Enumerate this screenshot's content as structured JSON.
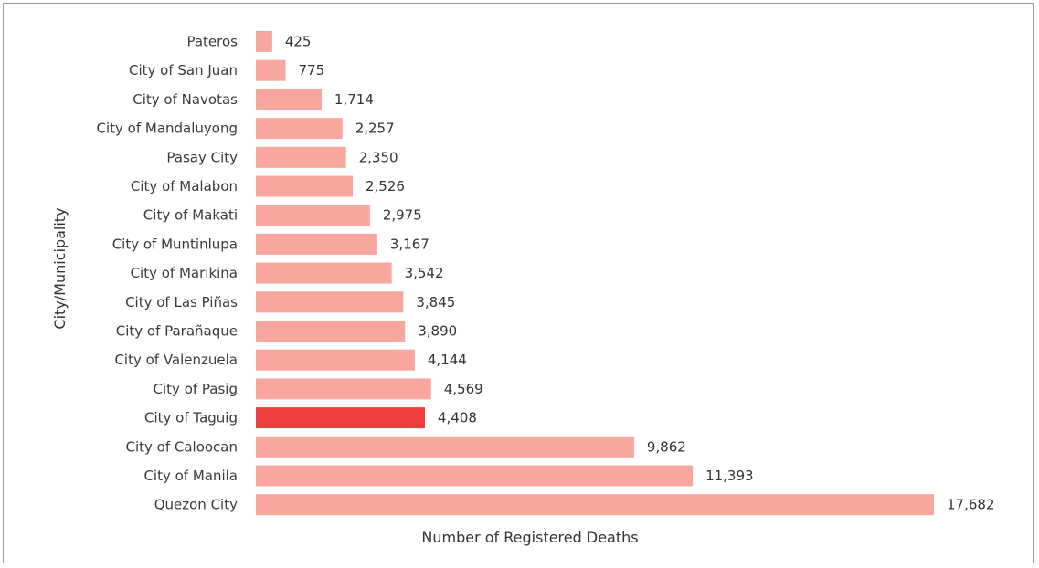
{
  "chart_data": {
    "type": "bar",
    "orientation": "horizontal",
    "xlabel": "Number of Registered Deaths",
    "ylabel": "City/Municipality",
    "categories": [
      "Pateros",
      "City of San Juan",
      "City of Navotas",
      "City of Mandaluyong",
      "Pasay City",
      "City of Malabon",
      "City of Makati",
      "City of Muntinlupa",
      "City of Marikina",
      "City of Las Piñas",
      "City of Parañaque",
      "City of Valenzuela",
      "City of Pasig",
      "City of Taguig",
      "City of Caloocan",
      "City of Manila",
      "Quezon City"
    ],
    "values": [
      425,
      775,
      1714,
      2257,
      2350,
      2526,
      2975,
      3167,
      3542,
      3845,
      3890,
      4144,
      4569,
      4408,
      9862,
      11393,
      17682
    ],
    "value_labels": [
      "425",
      "775",
      "1,714",
      "2,257",
      "2,350",
      "2,526",
      "2,975",
      "3,167",
      "3,542",
      "3,845",
      "3,890",
      "4,144",
      "4,569",
      "4,408",
      "9,862",
      "11,393",
      "17,682"
    ],
    "highlight": "City of Taguig",
    "bar_color": "#f7a79e",
    "highlight_color": "#ee3f3f",
    "xlim": [
      0,
      17682
    ],
    "grid": false
  }
}
